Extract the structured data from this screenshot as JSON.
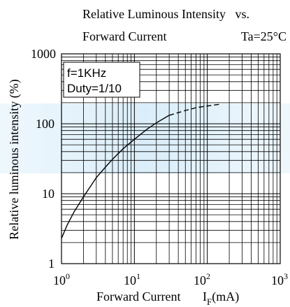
{
  "chart_data": {
    "type": "line",
    "title_line1": "Relative Luminous Intensity   vs.",
    "title_line2": "Forward Current",
    "condition": "Ta=25°C",
    "xlabel": "Forward Current",
    "xlabel_symbol": "I",
    "xlabel_sub": "F",
    "xlabel_unit": "(mA)",
    "ylabel": "Relative luminous intensity (%)",
    "x_scale": "log",
    "y_scale": "log",
    "xlim": [
      1,
      1000
    ],
    "ylim": [
      1,
      1000
    ],
    "x_tick_labels": [
      {
        "base": "10",
        "exp": "0"
      },
      {
        "base": "10",
        "exp": "1"
      },
      {
        "base": "10",
        "exp": "2"
      },
      {
        "base": "10",
        "exp": "3"
      }
    ],
    "y_tick_labels": [
      "1",
      "10",
      "100",
      "1000"
    ],
    "legend_box": [
      "f=1KHz",
      "Duty=1/10"
    ],
    "grid": true,
    "series": [
      {
        "style": "solid",
        "x": [
          1,
          1.2,
          1.5,
          2,
          3,
          4,
          5,
          7,
          10,
          15,
          20,
          30
        ],
        "y": [
          2.3,
          3.6,
          5.6,
          9,
          17,
          24,
          31,
          44,
          60,
          84,
          103,
          132
        ]
      },
      {
        "style": "dashed",
        "x": [
          30,
          50,
          70,
          100,
          150
        ],
        "y": [
          132,
          155,
          170,
          180,
          190
        ]
      }
    ]
  }
}
